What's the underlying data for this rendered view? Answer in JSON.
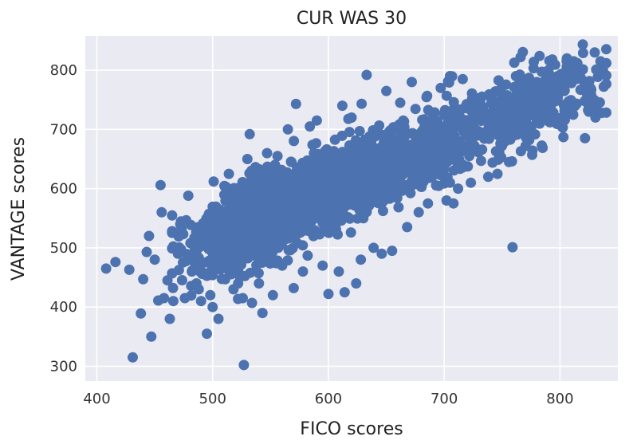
{
  "chart_data": {
    "type": "scatter",
    "title": "CUR WAS 30",
    "xlabel": "FICO scores",
    "ylabel": "VANTAGE scores",
    "xlim": [
      390,
      850
    ],
    "ylim": [
      275,
      858
    ],
    "xticks": [
      400,
      500,
      600,
      700,
      800
    ],
    "yticks": [
      300,
      400,
      500,
      600,
      700,
      800
    ],
    "grid": true,
    "legend": "none",
    "colors": {
      "background": "#eaeaf2",
      "grid": "#ffffff",
      "points": "#4c72b0"
    },
    "trend": {
      "slope": 0.82,
      "intercept": 106,
      "spread": 32,
      "x_min": 465,
      "x_max": 840,
      "density": "highest near 530-560 and 600-700"
    },
    "series": [
      {
        "values": [
          {
            "x": 408,
            "y": 465
          },
          {
            "x": 416,
            "y": 476
          },
          {
            "x": 428,
            "y": 463
          },
          {
            "x": 431,
            "y": 315
          },
          {
            "x": 438,
            "y": 389
          },
          {
            "x": 440,
            "y": 447
          },
          {
            "x": 443,
            "y": 493
          },
          {
            "x": 445,
            "y": 520
          },
          {
            "x": 447,
            "y": 350
          },
          {
            "x": 450,
            "y": 480
          },
          {
            "x": 453,
            "y": 411
          },
          {
            "x": 455,
            "y": 606
          },
          {
            "x": 456,
            "y": 560
          },
          {
            "x": 458,
            "y": 415
          },
          {
            "x": 461,
            "y": 445
          },
          {
            "x": 463,
            "y": 380
          },
          {
            "x": 466,
            "y": 410
          },
          {
            "x": 470,
            "y": 490
          },
          {
            "x": 472,
            "y": 540
          },
          {
            "x": 476,
            "y": 415
          },
          {
            "x": 479,
            "y": 588
          },
          {
            "x": 482,
            "y": 460
          },
          {
            "x": 486,
            "y": 440
          },
          {
            "x": 488,
            "y": 430
          },
          {
            "x": 490,
            "y": 410
          },
          {
            "x": 493,
            "y": 512
          },
          {
            "x": 495,
            "y": 355
          },
          {
            "x": 498,
            "y": 420
          },
          {
            "x": 500,
            "y": 400
          },
          {
            "x": 502,
            "y": 560
          },
          {
            "x": 505,
            "y": 380
          },
          {
            "x": 510,
            "y": 470
          },
          {
            "x": 514,
            "y": 625
          },
          {
            "x": 518,
            "y": 430
          },
          {
            "x": 520,
            "y": 600
          },
          {
            "x": 522,
            "y": 440
          },
          {
            "x": 526,
            "y": 415
          },
          {
            "x": 527,
            "y": 302
          },
          {
            "x": 530,
            "y": 650
          },
          {
            "x": 532,
            "y": 692
          },
          {
            "x": 534,
            "y": 407
          },
          {
            "x": 540,
            "y": 440
          },
          {
            "x": 543,
            "y": 390
          },
          {
            "x": 547,
            "y": 660
          },
          {
            "x": 552,
            "y": 420
          },
          {
            "x": 556,
            "y": 655
          },
          {
            "x": 560,
            "y": 470
          },
          {
            "x": 565,
            "y": 700
          },
          {
            "x": 570,
            "y": 432
          },
          {
            "x": 572,
            "y": 743
          },
          {
            "x": 578,
            "y": 460
          },
          {
            "x": 584,
            "y": 705
          },
          {
            "x": 590,
            "y": 715
          },
          {
            "x": 595,
            "y": 470
          },
          {
            "x": 600,
            "y": 422
          },
          {
            "x": 609,
            "y": 460
          },
          {
            "x": 612,
            "y": 740
          },
          {
            "x": 614,
            "y": 425
          },
          {
            "x": 620,
            "y": 720
          },
          {
            "x": 624,
            "y": 440
          },
          {
            "x": 628,
            "y": 480
          },
          {
            "x": 633,
            "y": 792
          },
          {
            "x": 639,
            "y": 500
          },
          {
            "x": 646,
            "y": 490
          },
          {
            "x": 650,
            "y": 765
          },
          {
            "x": 655,
            "y": 495
          },
          {
            "x": 662,
            "y": 745
          },
          {
            "x": 668,
            "y": 535
          },
          {
            "x": 672,
            "y": 780
          },
          {
            "x": 678,
            "y": 560
          },
          {
            "x": 686,
            "y": 575
          },
          {
            "x": 697,
            "y": 770
          },
          {
            "x": 702,
            "y": 580
          },
          {
            "x": 705,
            "y": 790
          },
          {
            "x": 708,
            "y": 575
          },
          {
            "x": 712,
            "y": 600
          },
          {
            "x": 716,
            "y": 785
          },
          {
            "x": 723,
            "y": 610
          },
          {
            "x": 738,
            "y": 620
          },
          {
            "x": 744,
            "y": 720
          },
          {
            "x": 746,
            "y": 625
          },
          {
            "x": 752,
            "y": 730
          },
          {
            "x": 756,
            "y": 645
          },
          {
            "x": 759,
            "y": 501
          },
          {
            "x": 762,
            "y": 790
          },
          {
            "x": 766,
            "y": 822
          },
          {
            "x": 771,
            "y": 710
          },
          {
            "x": 776,
            "y": 657
          },
          {
            "x": 780,
            "y": 780
          },
          {
            "x": 785,
            "y": 760
          },
          {
            "x": 790,
            "y": 800
          },
          {
            "x": 794,
            "y": 748
          },
          {
            "x": 798,
            "y": 790
          },
          {
            "x": 803,
            "y": 687
          },
          {
            "x": 806,
            "y": 820
          },
          {
            "x": 811,
            "y": 745
          },
          {
            "x": 815,
            "y": 812
          },
          {
            "x": 820,
            "y": 829
          },
          {
            "x": 825,
            "y": 730
          },
          {
            "x": 830,
            "y": 830
          },
          {
            "x": 835,
            "y": 815
          },
          {
            "x": 840,
            "y": 812
          }
        ]
      }
    ]
  }
}
